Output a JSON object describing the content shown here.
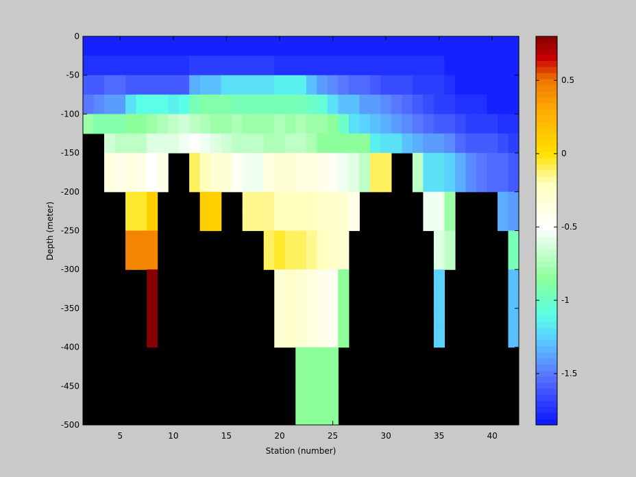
{
  "chart_data": {
    "type": "heatmap",
    "title": "",
    "xlabel": "Station (number)",
    "ylabel": "Depth (meter)",
    "xlim": [
      1.5,
      42.5
    ],
    "ylim": [
      -500,
      0
    ],
    "xticks": [
      5,
      10,
      15,
      20,
      25,
      30,
      35,
      40
    ],
    "yticks": [
      0,
      -50,
      -100,
      -150,
      -200,
      -250,
      -300,
      -350,
      -400,
      -450,
      -500
    ],
    "colorbar": {
      "limits": [
        -1.85,
        0.8
      ],
      "ticks": [
        0.5,
        0,
        -0.5,
        -1,
        -1.5
      ],
      "colormap": "jet-white-center",
      "stops": [
        {
          "v": -1.85,
          "color": "#0a14ff"
        },
        {
          "v": -1.5,
          "color": "#5a78ff"
        },
        {
          "v": -1.25,
          "color": "#5ad2ff"
        },
        {
          "v": -1.1,
          "color": "#5affe6"
        },
        {
          "v": -0.85,
          "color": "#8cff9a"
        },
        {
          "v": -0.5,
          "color": "#ffffff"
        },
        {
          "v": -0.2,
          "color": "#ffffbe"
        },
        {
          "v": 0,
          "color": "#ffe100"
        },
        {
          "v": 0.3,
          "color": "#ffaa00"
        },
        {
          "v": 0.5,
          "color": "#f07800"
        },
        {
          "v": 0.65,
          "color": "#c80000"
        },
        {
          "v": 0.8,
          "color": "#820000"
        }
      ]
    },
    "no_data_color": "#000000",
    "station_range": [
      2,
      42
    ],
    "depth_step": 25,
    "depth_bins": [
      0,
      -25,
      -50,
      -75,
      -100,
      -125,
      -150,
      -175,
      -200,
      -225,
      -250,
      -275,
      -300,
      -325,
      -350,
      -375,
      -400,
      -425,
      -450,
      -475
    ],
    "profiles": [
      [
        -1.8,
        -1.75,
        -1.6,
        -1.5,
        -0.8,
        null,
        null,
        null,
        null,
        null,
        null,
        null,
        null,
        null,
        null,
        null,
        null,
        null,
        null,
        null
      ],
      [
        -1.8,
        -1.75,
        -1.6,
        -1.45,
        -0.9,
        null,
        null,
        null,
        null,
        null,
        null,
        null,
        null,
        null,
        null,
        null,
        null,
        null,
        null,
        null
      ],
      [
        -1.8,
        -1.75,
        -1.55,
        -1.4,
        -0.9,
        -0.65,
        -0.35,
        -0.35,
        null,
        null,
        null,
        null,
        null,
        null,
        null,
        null,
        null,
        null,
        null,
        null
      ],
      [
        -1.8,
        -1.75,
        -1.55,
        -1.4,
        -0.9,
        -0.7,
        -0.4,
        -0.4,
        null,
        null,
        null,
        null,
        null,
        null,
        null,
        null,
        null,
        null,
        null,
        null
      ],
      [
        -1.8,
        -1.75,
        -1.6,
        -1.2,
        -0.85,
        -0.7,
        -0.35,
        -0.35,
        -0.05,
        -0.05,
        0.45,
        0.45,
        null,
        null,
        null,
        null,
        null,
        null,
        null,
        null
      ],
      [
        -1.8,
        -1.75,
        -1.6,
        -1.1,
        -0.85,
        -0.7,
        -0.4,
        -0.4,
        -0.05,
        -0.05,
        0.45,
        0.45,
        null,
        null,
        null,
        null,
        null,
        null,
        null,
        null
      ],
      [
        -1.8,
        -1.75,
        -1.6,
        -1.1,
        -0.8,
        -0.6,
        -0.5,
        -0.5,
        0.1,
        0.1,
        0.45,
        0.45,
        0.8,
        0.8,
        0.8,
        0.8,
        null,
        null,
        null,
        null
      ],
      [
        -1.8,
        -1.75,
        -1.6,
        -1.1,
        -0.75,
        -0.6,
        -0.4,
        -0.4,
        null,
        null,
        null,
        null,
        null,
        null,
        null,
        null,
        null,
        null,
        null,
        null
      ],
      [
        -1.8,
        -1.75,
        -1.6,
        -1.15,
        -0.7,
        -0.6,
        null,
        null,
        null,
        null,
        null,
        null,
        null,
        null,
        null,
        null,
        null,
        null,
        null,
        null
      ],
      [
        -1.8,
        -1.75,
        -1.6,
        -1.1,
        -0.65,
        -0.55,
        null,
        null,
        null,
        null,
        null,
        null,
        null,
        null,
        null,
        null,
        null,
        null,
        null,
        null
      ],
      [
        -1.8,
        -1.7,
        -1.35,
        -0.95,
        -0.7,
        -0.5,
        -0.1,
        -0.1,
        null,
        null,
        null,
        null,
        null,
        null,
        null,
        null,
        null,
        null,
        null,
        null
      ],
      [
        -1.8,
        -1.7,
        -1.3,
        -0.9,
        -0.75,
        -0.55,
        -0.2,
        -0.2,
        0.1,
        0.1,
        null,
        null,
        null,
        null,
        null,
        null,
        null,
        null,
        null,
        null
      ],
      [
        -1.8,
        -1.7,
        -1.3,
        -0.9,
        -0.8,
        -0.6,
        -0.3,
        -0.3,
        0.1,
        0.1,
        null,
        null,
        null,
        null,
        null,
        null,
        null,
        null,
        null,
        null
      ],
      [
        -1.8,
        -1.7,
        -1.2,
        -0.9,
        -0.8,
        -0.65,
        -0.3,
        -0.3,
        null,
        null,
        null,
        null,
        null,
        null,
        null,
        null,
        null,
        null,
        null,
        null
      ],
      [
        -1.8,
        -1.7,
        -1.2,
        -0.95,
        -0.75,
        -0.7,
        -0.45,
        -0.45,
        null,
        null,
        null,
        null,
        null,
        null,
        null,
        null,
        null,
        null,
        null,
        null
      ],
      [
        -1.8,
        -1.7,
        -1.2,
        -0.95,
        -0.8,
        -0.7,
        -0.55,
        -0.55,
        -0.15,
        -0.15,
        null,
        null,
        null,
        null,
        null,
        null,
        null,
        null,
        null,
        null
      ],
      [
        -1.8,
        -1.7,
        -1.2,
        -0.95,
        -0.8,
        -0.7,
        -0.55,
        -0.55,
        -0.15,
        -0.15,
        null,
        null,
        null,
        null,
        null,
        null,
        null,
        null,
        null,
        null
      ],
      [
        -1.8,
        -1.7,
        -1.2,
        -0.95,
        -0.8,
        -0.75,
        -0.35,
        -0.35,
        -0.15,
        -0.15,
        -0.1,
        -0.1,
        null,
        null,
        null,
        null,
        null,
        null,
        null,
        null
      ],
      [
        -1.8,
        -1.75,
        -1.15,
        -0.95,
        -0.75,
        -0.75,
        -0.3,
        -0.3,
        -0.2,
        -0.2,
        -0.05,
        -0.05,
        -0.3,
        -0.3,
        -0.3,
        -0.3,
        null,
        null,
        null,
        null
      ],
      [
        -1.8,
        -1.75,
        -1.15,
        -0.95,
        -0.8,
        -0.7,
        -0.3,
        -0.3,
        -0.2,
        -0.2,
        -0.1,
        -0.1,
        -0.25,
        -0.25,
        -0.25,
        -0.25,
        null,
        null,
        null,
        null
      ],
      [
        -1.8,
        -1.75,
        -1.15,
        -0.95,
        -0.75,
        -0.7,
        -0.35,
        -0.35,
        -0.2,
        -0.2,
        -0.1,
        -0.1,
        -0.3,
        -0.3,
        -0.3,
        -0.3,
        -0.85,
        -0.85,
        -0.85,
        -0.85
      ],
      [
        -1.8,
        -1.75,
        -1.3,
        -1.0,
        -0.8,
        -0.75,
        -0.35,
        -0.35,
        -0.2,
        -0.2,
        -0.15,
        -0.15,
        -0.35,
        -0.35,
        -0.35,
        -0.35,
        -0.85,
        -0.85,
        -0.85,
        -0.85
      ],
      [
        -1.8,
        -1.75,
        -1.4,
        -1.05,
        -0.8,
        -0.85,
        -0.4,
        -0.4,
        -0.25,
        -0.25,
        -0.2,
        -0.2,
        -0.4,
        -0.4,
        -0.4,
        -0.4,
        -0.85,
        -0.85,
        -0.85,
        -0.85
      ],
      [
        -1.8,
        -1.75,
        -1.45,
        -1.2,
        -0.85,
        -0.85,
        -0.45,
        -0.45,
        -0.25,
        -0.25,
        -0.25,
        -0.25,
        -0.45,
        -0.45,
        -0.45,
        -0.45,
        -0.85,
        -0.85,
        -0.85,
        -0.85
      ],
      [
        -1.8,
        -1.75,
        -1.5,
        -1.3,
        -1.0,
        -0.85,
        -0.55,
        -0.55,
        -0.3,
        -0.3,
        -0.3,
        -0.3,
        -0.85,
        -0.85,
        -0.85,
        -0.85,
        null,
        null,
        null,
        null
      ],
      [
        -1.8,
        -1.75,
        -1.55,
        -1.3,
        -1.2,
        -0.85,
        -0.6,
        -0.6,
        -0.4,
        -0.4,
        null,
        null,
        null,
        null,
        null,
        null,
        null,
        null,
        null,
        null
      ],
      [
        -1.8,
        -1.75,
        -1.55,
        -1.4,
        -1.25,
        -0.85,
        -0.7,
        -0.7,
        null,
        null,
        null,
        null,
        null,
        null,
        null,
        null,
        null,
        null,
        null,
        null
      ],
      [
        -1.8,
        -1.75,
        -1.6,
        -1.4,
        -1.3,
        -1.15,
        -0.1,
        -0.1,
        null,
        null,
        null,
        null,
        null,
        null,
        null,
        null,
        null,
        null,
        null,
        null
      ],
      [
        -1.8,
        -1.75,
        -1.65,
        -1.45,
        -1.35,
        -1.2,
        -0.1,
        -0.1,
        null,
        null,
        null,
        null,
        null,
        null,
        null,
        null,
        null,
        null,
        null,
        null
      ],
      [
        -1.8,
        -1.75,
        -1.65,
        -1.5,
        -1.4,
        -1.2,
        null,
        null,
        null,
        null,
        null,
        null,
        null,
        null,
        null,
        null,
        null,
        null,
        null,
        null
      ],
      [
        -1.8,
        -1.75,
        -1.65,
        -1.55,
        -1.45,
        -1.3,
        null,
        null,
        null,
        null,
        null,
        null,
        null,
        null,
        null,
        null,
        null,
        null,
        null,
        null
      ],
      [
        -1.8,
        -1.75,
        -1.7,
        -1.6,
        -1.5,
        -1.35,
        -0.7,
        -0.7,
        null,
        null,
        null,
        null,
        null,
        null,
        null,
        null,
        null,
        null,
        null,
        null
      ],
      [
        -1.8,
        -1.75,
        -1.7,
        -1.65,
        -1.55,
        -1.4,
        -1.2,
        -1.2,
        -0.55,
        -0.55,
        null,
        null,
        null,
        null,
        null,
        null,
        null,
        null,
        null,
        null
      ],
      [
        -1.8,
        -1.75,
        -1.7,
        -1.7,
        -1.6,
        -1.4,
        -1.2,
        -1.2,
        -0.55,
        -0.55,
        -0.6,
        -0.6,
        -1.25,
        -1.25,
        -1.25,
        -1.25,
        null,
        null,
        null,
        null
      ],
      [
        -1.8,
        -1.8,
        -1.75,
        -1.7,
        -1.6,
        -1.45,
        -1.25,
        -1.25,
        -0.8,
        -0.8,
        -0.7,
        -0.7,
        null,
        null,
        null,
        null,
        null,
        null,
        null,
        null
      ],
      [
        -1.8,
        -1.8,
        -1.8,
        -1.75,
        -1.65,
        -1.55,
        -1.35,
        -1.35,
        null,
        null,
        null,
        null,
        null,
        null,
        null,
        null,
        null,
        null,
        null,
        null
      ],
      [
        -1.8,
        -1.8,
        -1.8,
        -1.75,
        -1.7,
        -1.6,
        -1.45,
        -1.45,
        null,
        null,
        null,
        null,
        null,
        null,
        null,
        null,
        null,
        null,
        null,
        null
      ],
      [
        -1.8,
        -1.8,
        -1.8,
        -1.75,
        -1.7,
        -1.6,
        -1.5,
        -1.5,
        null,
        null,
        null,
        null,
        null,
        null,
        null,
        null,
        null,
        null,
        null,
        null
      ],
      [
        -1.8,
        -1.8,
        -1.8,
        -1.8,
        -1.7,
        -1.6,
        -1.55,
        -1.55,
        null,
        null,
        null,
        null,
        null,
        null,
        null,
        null,
        null,
        null,
        null,
        null
      ],
      [
        -1.8,
        -1.8,
        -1.8,
        -1.8,
        -1.75,
        -1.65,
        -1.55,
        -1.55,
        -1.35,
        -1.35,
        null,
        null,
        null,
        null,
        null,
        null,
        null,
        null,
        null,
        null
      ],
      [
        -1.8,
        -1.8,
        -1.8,
        -1.8,
        -1.75,
        -1.7,
        -1.6,
        -1.6,
        -1.4,
        -1.4,
        -0.95,
        -0.95,
        -1.3,
        -1.3,
        -1.3,
        -1.3,
        null,
        null,
        null,
        null
      ]
    ]
  }
}
